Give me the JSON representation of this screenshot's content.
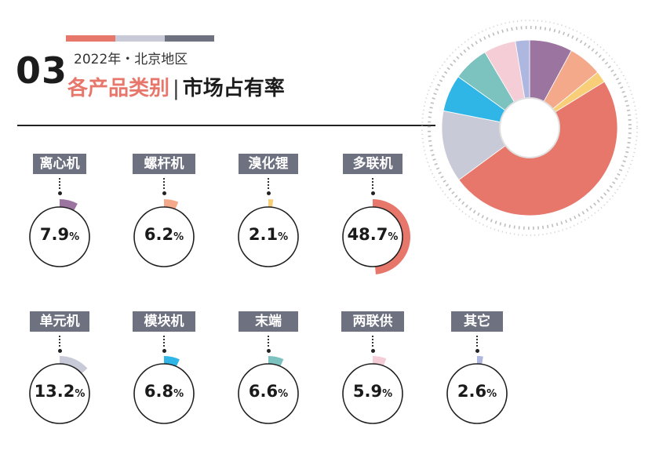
{
  "header": {
    "number": "03",
    "subtitle": "2022年・北京地区",
    "title_category": "各产品类别",
    "title_separator": "|",
    "title_rest": "市场占有率",
    "bar_colors": [
      "#e8776b",
      "#c9cad8",
      "#6d7180"
    ]
  },
  "chart_data": {
    "type": "pie",
    "title": "2022年・北京地区 各产品类别 | 市场占有率",
    "unit": "%",
    "categories": [
      "离心机",
      "螺杆机",
      "溴化锂",
      "多联机",
      "单元机",
      "模块机",
      "末端",
      "两联供",
      "其它"
    ],
    "values": [
      7.9,
      6.2,
      2.1,
      48.7,
      13.2,
      6.8,
      6.6,
      5.9,
      2.6
    ],
    "value_labels": [
      "7.9",
      "6.2",
      "2.1",
      "48.7",
      "13.2",
      "6.8",
      "6.6",
      "5.9",
      "2.6"
    ],
    "percent_sign": "%",
    "colors": [
      "#9b74a0",
      "#f4a98b",
      "#f8cf78",
      "#e8776b",
      "#c9cad8",
      "#2fb6e6",
      "#7cc2bf",
      "#f5cdd6",
      "#aeb7df"
    ]
  }
}
